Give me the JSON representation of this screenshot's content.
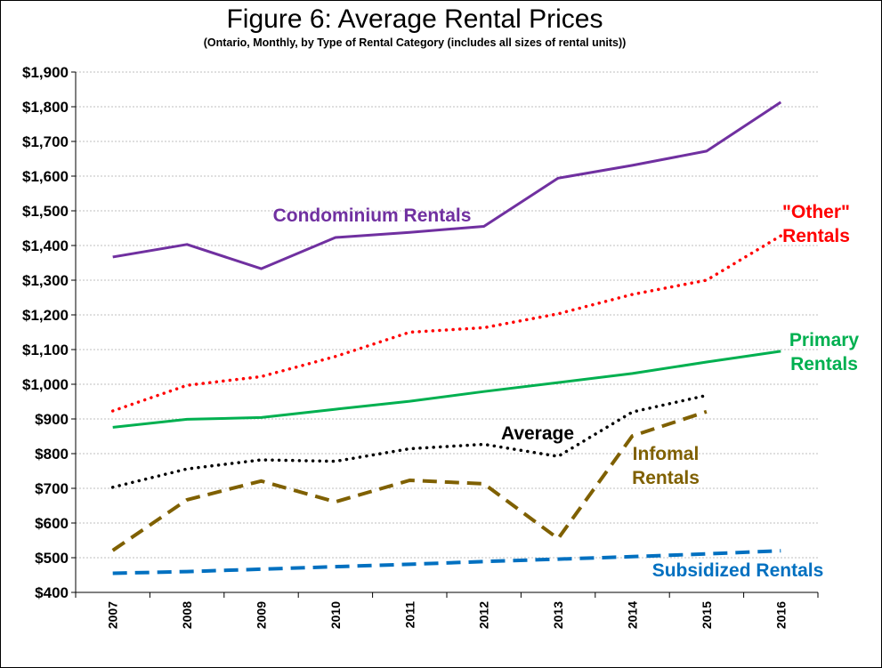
{
  "chart_data": {
    "type": "line",
    "title": "Figure 6: Average Rental Prices",
    "subtitle": "(Ontario, Monthly, by Type of Rental Category (includes all sizes of rental units))",
    "xlabel": "",
    "ylabel": "",
    "categories": [
      "2007",
      "2008",
      "2009",
      "2010",
      "2011",
      "2012",
      "2013",
      "2014",
      "2015",
      "2016"
    ],
    "y_ticks": [
      "$400",
      "$500",
      "$600",
      "$700",
      "$800",
      "$900",
      "$1,000",
      "$1,100",
      "$1,200",
      "$1,300",
      "$1,400",
      "$1,500",
      "$1,600",
      "$1,700",
      "$1,800",
      "$1,900"
    ],
    "ylim": [
      400,
      1900
    ],
    "grid": true,
    "legend": "none (series labelled directly on chart)",
    "series": [
      {
        "name": "Condominium Rentals",
        "label_lines": [
          "Condominium Rentals"
        ],
        "color": "#7030A0",
        "style": "solid",
        "values": [
          1367,
          1403,
          1333,
          1423,
          1438,
          1455,
          1594,
          1631,
          1672,
          1813
        ]
      },
      {
        "name": "\"Other\" Rentals",
        "label_lines": [
          "\"Other\"",
          "Rentals"
        ],
        "color": "#FF0000",
        "style": "dotted",
        "values": [
          923,
          997,
          1022,
          1080,
          1150,
          1163,
          1203,
          1259,
          1300,
          1428
        ]
      },
      {
        "name": "Primary Rentals",
        "label_lines": [
          "Primary",
          "Rentals"
        ],
        "color": "#00B050",
        "style": "solid",
        "values": [
          876,
          899,
          904,
          928,
          951,
          979,
          1005,
          1031,
          1064,
          1095
        ]
      },
      {
        "name": "Average",
        "label_lines": [
          "Average"
        ],
        "color": "#000000",
        "style": "dotted",
        "values": [
          703,
          756,
          782,
          778,
          814,
          827,
          792,
          920,
          968,
          null
        ]
      },
      {
        "name": "Infomal Rentals",
        "label_lines": [
          "Infomal",
          "Rentals"
        ],
        "color": "#7F6000",
        "style": "dashed",
        "values": [
          521,
          667,
          721,
          661,
          723,
          713,
          555,
          851,
          921,
          null
        ]
      },
      {
        "name": "Subsidized Rentals",
        "label_lines": [
          "Subsidized Rentals"
        ],
        "color": "#0070C0",
        "style": "dashed",
        "values": [
          455,
          460,
          467,
          474,
          481,
          489,
          496,
          503,
          511,
          520
        ]
      }
    ]
  }
}
